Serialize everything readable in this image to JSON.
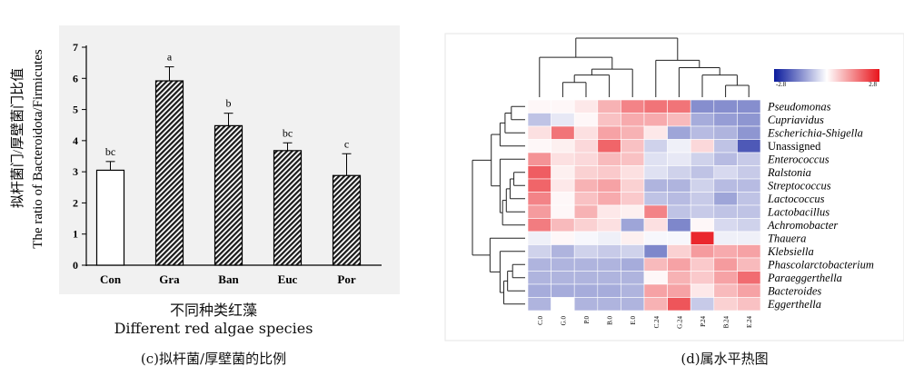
{
  "chart_data": [
    {
      "type": "bar",
      "categories": [
        "Con",
        "Gra",
        "Ban",
        "Euc",
        "Por"
      ],
      "values": [
        3.05,
        5.92,
        4.48,
        3.68,
        2.88
      ],
      "errors": [
        0.28,
        0.45,
        0.4,
        0.25,
        0.7
      ],
      "significance": [
        "bc",
        "a",
        "b",
        "bc",
        "c"
      ],
      "ylim": [
        0,
        7
      ],
      "yticks": [
        0,
        1,
        2,
        3,
        4,
        5,
        6,
        7
      ],
      "ylabel_cn": "拟杆菌门/厚壁菌门比值",
      "ylabel_en": "The ratio of Bacteroidota/Firmicutes",
      "xlabel_cn": "不同种类红藻",
      "xlabel_en": "Different red algae species",
      "caption": "(c)拟杆菌/厚壁菌的比例",
      "colors": {
        "Con": "#ffffff",
        "treated": "hatched"
      }
    },
    {
      "type": "heatmap",
      "caption": "(d)属水平热图",
      "rows": [
        "Pseudomonas",
        "Cupriavidus",
        "Escherichia-Shigella",
        "Unassigned",
        "Enterococcus",
        "Ralstonia",
        "Streptococcus",
        "Lactococcus",
        "Lactobacillus",
        "Achromobacter",
        "Thauera",
        "Klebsiella",
        "Phascolarctobacterium",
        "Paraeggerthella",
        "Bacteroides",
        "Eggerthella"
      ],
      "italic_rows": [
        true,
        true,
        true,
        false,
        true,
        true,
        true,
        true,
        true,
        true,
        true,
        true,
        true,
        true,
        true,
        true
      ],
      "columns": [
        "C.0",
        "G.0",
        "P.0",
        "B.0",
        "E.0",
        "C.24",
        "G.24",
        "P.24",
        "B.24",
        "E.24"
      ],
      "values": [
        [
          0.1,
          0.1,
          0.3,
          1.0,
          1.6,
          1.8,
          1.8,
          -1.5,
          -1.5,
          -1.5
        ],
        [
          -0.8,
          -0.3,
          0.1,
          0.8,
          1.1,
          1.1,
          0.9,
          -1.1,
          -1.3,
          -1.4
        ],
        [
          0.4,
          1.8,
          0.4,
          1.2,
          1.0,
          0.3,
          -1.2,
          -0.9,
          -1.0,
          -1.4
        ],
        [
          0.1,
          0.2,
          0.5,
          2.0,
          0.8,
          -0.6,
          -0.2,
          0.5,
          -0.8,
          -2.2
        ],
        [
          1.4,
          0.4,
          0.5,
          0.9,
          0.8,
          -0.4,
          -0.3,
          -0.6,
          -0.9,
          -0.7
        ],
        [
          2.1,
          0.2,
          0.6,
          0.7,
          0.4,
          -0.4,
          -0.6,
          -0.8,
          -0.5,
          -0.7
        ],
        [
          2.0,
          0.3,
          1.0,
          1.2,
          0.6,
          -1.0,
          -1.0,
          -0.6,
          -0.9,
          -0.9
        ],
        [
          1.6,
          0.1,
          0.8,
          1.1,
          0.7,
          -0.8,
          -0.9,
          -0.7,
          -1.2,
          -0.8
        ],
        [
          1.3,
          0.1,
          1.0,
          0.3,
          0.2,
          1.6,
          -0.8,
          -0.7,
          -0.8,
          -0.8
        ],
        [
          1.7,
          0.9,
          0.6,
          0.4,
          -1.2,
          0.4,
          -1.6,
          0.1,
          -0.5,
          -0.6
        ],
        [
          -0.2,
          0.1,
          -0.1,
          -0.2,
          0.2,
          -0.1,
          -0.1,
          2.8,
          -0.2,
          -0.2
        ],
        [
          -0.6,
          -1.0,
          -0.6,
          -0.7,
          -0.6,
          -1.6,
          0.6,
          1.3,
          1.1,
          1.2
        ],
        [
          -1.0,
          -1.0,
          -1.0,
          -1.0,
          -1.1,
          0.9,
          1.2,
          0.7,
          1.3,
          0.9
        ],
        [
          -1.0,
          -1.0,
          -1.0,
          -1.0,
          -1.0,
          0.1,
          1.0,
          0.7,
          1.2,
          1.9
        ],
        [
          -1.1,
          -1.1,
          -1.1,
          -1.1,
          -1.0,
          1.2,
          1.2,
          0.3,
          0.9,
          1.2
        ],
        [
          -1.0,
          0.0,
          -1.0,
          -1.0,
          -1.0,
          1.0,
          2.2,
          -0.7,
          0.6,
          0.8
        ]
      ],
      "scale": {
        "min": -2.8,
        "max": 2.8,
        "min_label": "-2.8",
        "max_label": "2.8",
        "low_color": "#0a1a9c",
        "mid_color": "#ffffff",
        "high_color": "#e8141b"
      },
      "row_dendrogram": [
        [
          0,
          1,
          0.55
        ],
        [
          16,
          2,
          0.8
        ],
        [
          17,
          3,
          1.0
        ],
        [
          5,
          6,
          0.45
        ],
        [
          19,
          7,
          0.6
        ],
        [
          20,
          8,
          0.75
        ],
        [
          21,
          9,
          0.9
        ],
        [
          22,
          4,
          1.0
        ],
        [
          18,
          23,
          1.35
        ],
        [
          12,
          13,
          0.5
        ],
        [
          25,
          14,
          0.7
        ],
        [
          26,
          15,
          0.85
        ],
        [
          27,
          11,
          1.0
        ],
        [
          28,
          10,
          1.4
        ],
        [
          24,
          29,
          2.1
        ]
      ],
      "col_dendrogram": [
        [
          1,
          2,
          0.5
        ],
        [
          10,
          3,
          0.75
        ],
        [
          11,
          4,
          0.95
        ],
        [
          0,
          12,
          1.35
        ],
        [
          8,
          9,
          0.4
        ],
        [
          14,
          7,
          0.75
        ],
        [
          15,
          6,
          1.0
        ],
        [
          5,
          16,
          1.25
        ],
        [
          13,
          17,
          2.0
        ]
      ]
    }
  ]
}
